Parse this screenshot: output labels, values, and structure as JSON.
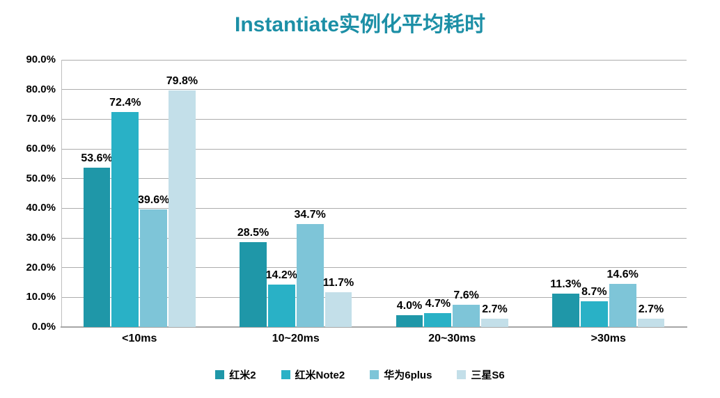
{
  "title": "Instantiate实例化平均耗时",
  "colors": {
    "title": "#1C8FA6",
    "gridline": "#ACACAC",
    "axis_line": "#A6A6A6",
    "plot_border": "#BFBFBF",
    "label_text": "#000000",
    "background": "#FFFFFF"
  },
  "chart_data": {
    "type": "bar",
    "title": "Instantiate实例化平均耗时",
    "categories": [
      "<10ms",
      "10~20ms",
      "20~30ms",
      ">30ms"
    ],
    "series": [
      {
        "name": "红米2",
        "color": "#1F97A8",
        "values": [
          53.6,
          28.5,
          4.0,
          11.3
        ],
        "labels": [
          "53.6%",
          "28.5%",
          "4.0%",
          "11.3%"
        ]
      },
      {
        "name": "红米Note2",
        "color": "#29B1C6",
        "values": [
          72.4,
          14.2,
          4.7,
          8.7
        ],
        "labels": [
          "72.4%",
          "14.2%",
          "4.7%",
          "8.7%"
        ]
      },
      {
        "name": "华为6plus",
        "color": "#7EC5D8",
        "values": [
          39.6,
          34.7,
          7.6,
          14.6
        ],
        "labels": [
          "39.6%",
          "34.7%",
          "7.6%",
          "14.6%"
        ]
      },
      {
        "name": "三星S6",
        "color": "#C3DFE9",
        "values": [
          79.8,
          11.7,
          2.7,
          2.7
        ],
        "labels": [
          "79.8%",
          "11.7%",
          "2.7%",
          "2.7%"
        ]
      }
    ],
    "xlabel": "",
    "ylabel": "",
    "ylim": [
      0,
      90
    ],
    "ytick_step": 10,
    "yticks": [
      "0.0%",
      "10.0%",
      "20.0%",
      "30.0%",
      "40.0%",
      "50.0%",
      "60.0%",
      "70.0%",
      "80.0%",
      "90.0%"
    ],
    "grid": "horizontal",
    "legend_position": "bottom",
    "data_labels": "above-bars"
  }
}
